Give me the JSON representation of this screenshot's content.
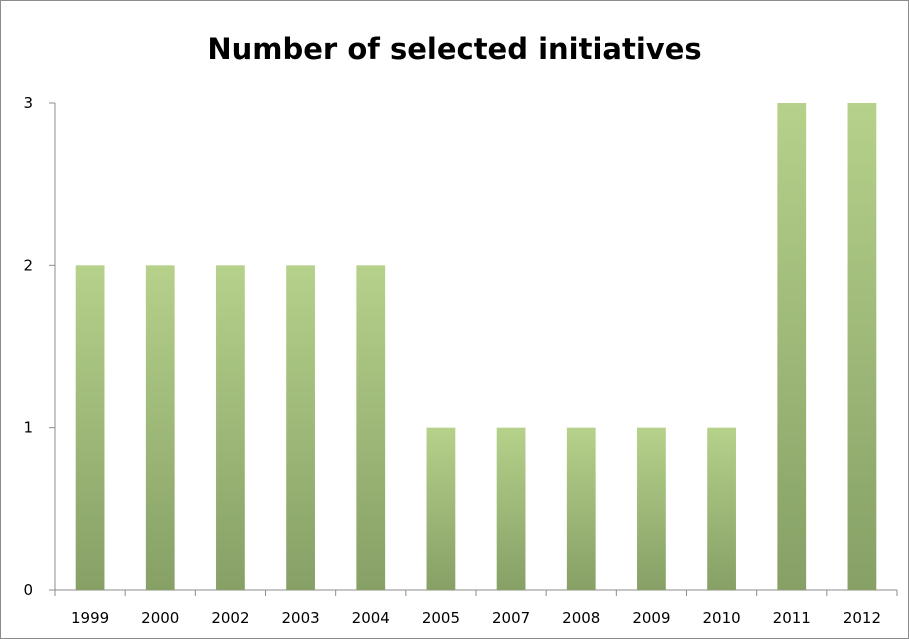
{
  "chart_data": {
    "type": "bar",
    "title": "Number of selected initiatives",
    "xlabel": "",
    "ylabel": "",
    "categories": [
      "1999",
      "2000",
      "2002",
      "2003",
      "2004",
      "2005",
      "2007",
      "2008",
      "2009",
      "2010",
      "2011",
      "2012"
    ],
    "values": [
      2,
      2,
      2,
      2,
      2,
      1,
      1,
      1,
      1,
      1,
      3,
      3
    ],
    "ylim": [
      0,
      3
    ],
    "yticks": [
      0,
      1,
      2,
      3
    ],
    "grid": false,
    "legend": "none",
    "colors": {
      "bar_top": "#b5d18a",
      "bar_bottom": "#86a066",
      "axis": "#8c8c8c"
    }
  }
}
